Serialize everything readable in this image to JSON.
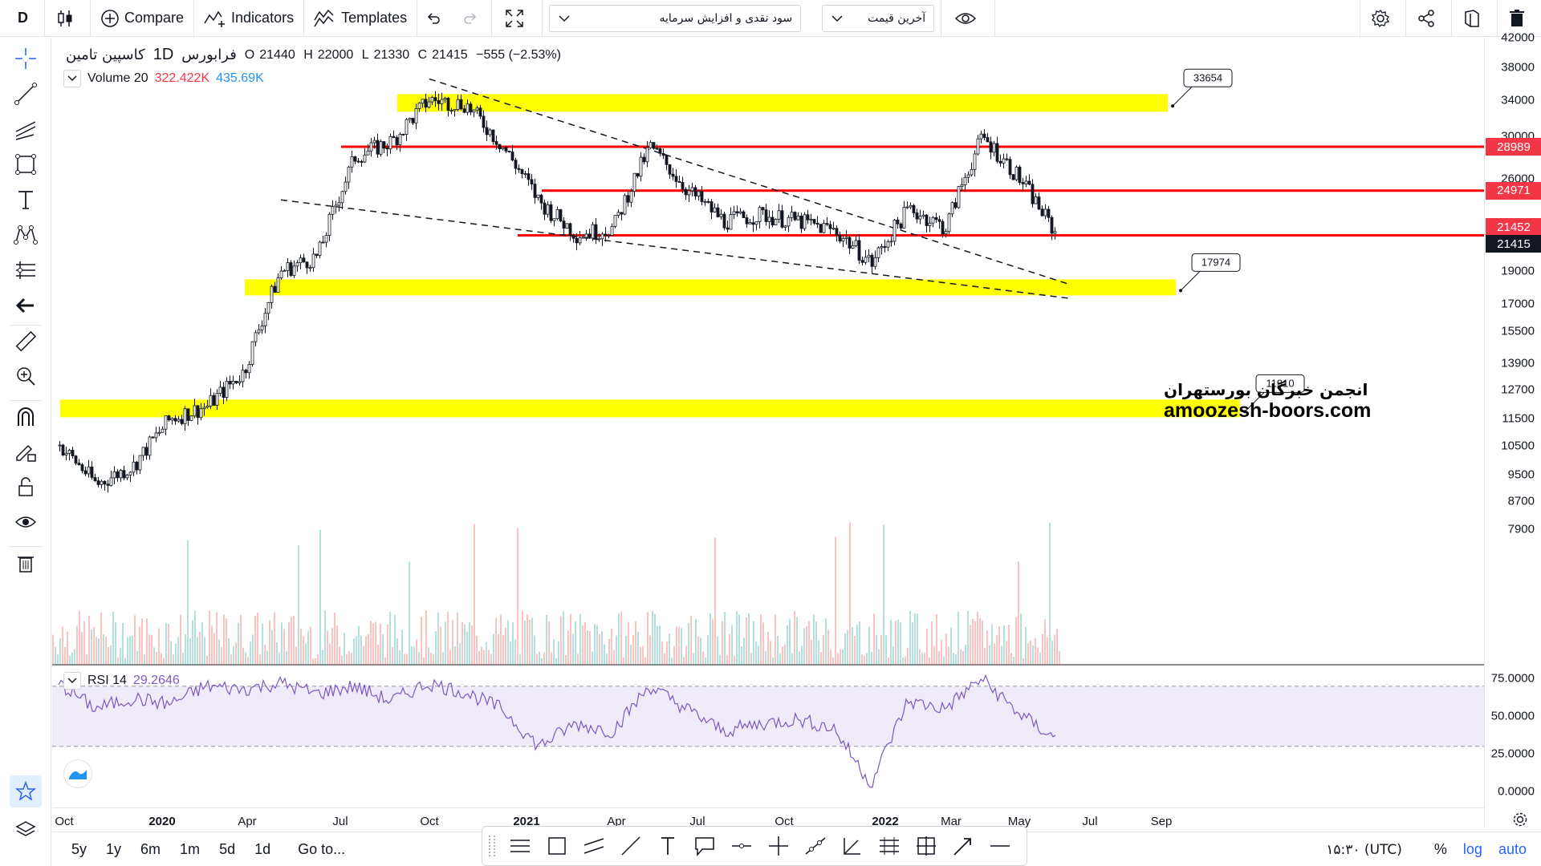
{
  "toolbar": {
    "interval": "D",
    "compare": "Compare",
    "indicators": "Indicators",
    "templates": "Templates",
    "layout_name": "سود نقدی و افزایش سرمایه",
    "price_source": "آخرین قیمت"
  },
  "legend": {
    "symbol": "کاسپین تامین",
    "interval": "1D",
    "exchange": "فرابورس",
    "open_label": "O",
    "open": "21440",
    "high_label": "H",
    "high": "22000",
    "low_label": "L",
    "low": "21330",
    "close_label": "C",
    "close": "21415",
    "change": "−555 (−2.53%)",
    "volume_name": "Volume 20",
    "volume_value": "322.422K",
    "volume_ma": "435.69K",
    "rsi_name": "RSI 14",
    "rsi_value": "29.2646"
  },
  "watermark": {
    "fa": "انجمن خبرگان بورستهران",
    "en": "amoozesh-boors.com"
  },
  "price_axis": {
    "ticks": [
      "42000",
      "38000",
      "34000",
      "30000",
      "26000",
      "22000",
      "19000",
      "17000",
      "15500",
      "13900",
      "12700",
      "11500",
      "10500",
      "9500",
      "8700",
      "7900"
    ],
    "labels": [
      {
        "text": "28989",
        "color": "#f23645"
      },
      {
        "text": "24971",
        "color": "#f23645"
      },
      {
        "text": "21452",
        "color": "#f23645"
      },
      {
        "text": "21415",
        "color": "#131722"
      }
    ],
    "rsi_ticks": [
      "75.0000",
      "50.0000",
      "25.0000",
      "0.0000"
    ]
  },
  "time_axis": {
    "ticks": [
      {
        "text": "Oct",
        "bold": false
      },
      {
        "text": "2020",
        "bold": true
      },
      {
        "text": "Apr",
        "bold": false
      },
      {
        "text": "Jul",
        "bold": false
      },
      {
        "text": "Oct",
        "bold": false
      },
      {
        "text": "2021",
        "bold": true
      },
      {
        "text": "Apr",
        "bold": false
      },
      {
        "text": "Jul",
        "bold": false
      },
      {
        "text": "Oct",
        "bold": false
      },
      {
        "text": "2022",
        "bold": true
      },
      {
        "text": "Mar",
        "bold": false
      },
      {
        "text": "May",
        "bold": false
      },
      {
        "text": "Jul",
        "bold": false
      },
      {
        "text": "Sep",
        "bold": false
      }
    ]
  },
  "bottombar": {
    "ranges": [
      "5y",
      "1y",
      "6m",
      "1m",
      "5d",
      "1d"
    ],
    "goto": "Go to...",
    "time": "۱۵:۳۰ (UTC)",
    "percent": "%",
    "log": "log",
    "auto": "auto"
  },
  "chart_data": {
    "type": "line",
    "series": [
      {
        "x": [
          "2019-09",
          "2019-10",
          "2019-11",
          "2019-12",
          "2020-01",
          "2020-02",
          "2020-03",
          "2020-04",
          "2020-05",
          "2020-06",
          "2020-07",
          "2020-08",
          "2020-09",
          "2020-10",
          "2020-11",
          "2020-12",
          "2021-01",
          "2021-02",
          "2021-03",
          "2021-04",
          "2021-05",
          "2021-06",
          "2021-07",
          "2021-08",
          "2021-09",
          "2021-10",
          "2021-11",
          "2021-12"
        ],
        "y": [
          10500,
          9200,
          9800,
          11500,
          12000,
          13500,
          19000,
          20000,
          28000,
          29500,
          34000,
          33500,
          29000,
          24000,
          21500,
          22000,
          29000,
          25000,
          22500,
          23000,
          22500,
          21800,
          19500,
          23500,
          22000,
          30000,
          26000,
          21415
        ]
      }
    ],
    "horizontal_lines": [
      28989,
      24971,
      21452
    ],
    "zones": [
      {
        "label": "33654",
        "value": 33654
      },
      {
        "label": "17974",
        "value": 17974
      },
      {
        "label": "11910",
        "value": 11910
      }
    ],
    "ylim": [
      7500,
      42000
    ],
    "log_scale": true,
    "rsi": {
      "y": [
        72,
        55,
        62,
        58,
        70,
        68,
        72,
        65,
        70,
        60,
        72,
        66,
        55,
        30,
        45,
        40,
        70,
        55,
        40,
        45,
        48,
        42,
        5,
        60,
        55,
        75,
        52,
        35
      ],
      "levels": [
        70,
        30
      ],
      "ylim": [
        0,
        80
      ]
    }
  }
}
